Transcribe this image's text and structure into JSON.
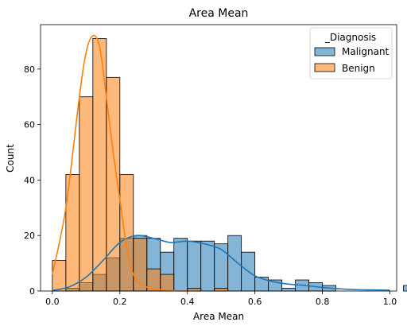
{
  "chart_data": {
    "type": "histogram",
    "title": "Area Mean",
    "xlabel": "Area Mean",
    "ylabel": "Count",
    "xlim": [
      -0.035,
      1.02
    ],
    "ylim": [
      0,
      96
    ],
    "xticks": [
      0.0,
      0.2,
      0.4,
      0.6,
      0.8,
      1.0
    ],
    "xtick_labels": [
      "0.0",
      "0.2",
      "0.4",
      "0.6",
      "0.8",
      "1.0"
    ],
    "yticks": [
      0,
      20,
      40,
      60,
      80
    ],
    "ytick_labels": [
      "0",
      "20",
      "40",
      "60",
      "80"
    ],
    "grid": false,
    "legend": {
      "title": "_Diagnosis",
      "placement": "top-right"
    },
    "bin_start": 0.0,
    "bin_width": 0.04,
    "series": [
      {
        "name": "Malignant",
        "color": "#1f77b4",
        "bar_color": "#80abd2",
        "counts": [
          0,
          1,
          3,
          6,
          12,
          19,
          20,
          19,
          14,
          19,
          18,
          18,
          17,
          20,
          14,
          5,
          4,
          1,
          4,
          3,
          2,
          0,
          0,
          0,
          0,
          0,
          2
        ],
        "kde_x": [
          0.0,
          0.05,
          0.1,
          0.15,
          0.2,
          0.25,
          0.3,
          0.35,
          0.4,
          0.45,
          0.5,
          0.55,
          0.6,
          0.65,
          0.7,
          0.75,
          0.8,
          0.85,
          0.9,
          0.95,
          1.0
        ],
        "kde_y": [
          0.2,
          1.5,
          5,
          11,
          17.5,
          20,
          19,
          17.5,
          18,
          17,
          15,
          10,
          5.5,
          3.5,
          2.5,
          2,
          1.3,
          0.8,
          0.5,
          0.4,
          0.3
        ]
      },
      {
        "name": "Benign",
        "color": "#ff7f0e",
        "bar_color": "#fdb379",
        "counts": [
          11,
          42,
          70,
          91,
          77,
          42,
          19,
          8,
          6,
          0,
          1,
          0,
          1,
          0,
          0,
          0,
          0,
          0,
          0,
          0,
          0,
          0,
          0,
          0,
          0,
          0,
          0
        ],
        "kde_x": [
          0.0,
          0.04,
          0.08,
          0.1,
          0.12,
          0.14,
          0.16,
          0.18,
          0.2,
          0.22,
          0.24,
          0.26,
          0.3,
          0.35,
          0.4
        ],
        "kde_y": [
          6,
          30,
          70,
          86,
          92,
          88,
          70,
          50,
          33,
          16,
          6,
          2.5,
          0.8,
          0.2,
          0
        ]
      }
    ]
  }
}
